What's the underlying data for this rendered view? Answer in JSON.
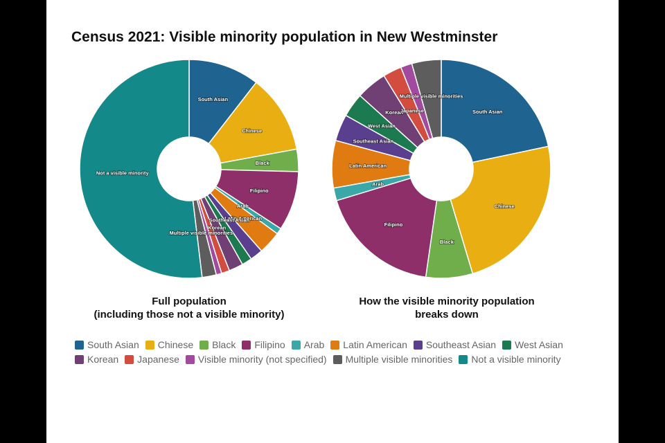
{
  "title": "Census 2021: Visible minority population in New Westminster",
  "colors": {
    "South Asian": "#1f6391",
    "Chinese": "#e8ae12",
    "Black": "#6fae4a",
    "Filipino": "#8e2f6a",
    "Arab": "#3aa7a8",
    "Latin American": "#e07b12",
    "Southeast Asian": "#5a3f8e",
    "West Asian": "#1b7a50",
    "Korean": "#703f73",
    "Japanese": "#d24c3f",
    "Visible minority (not specified)": "#a14a9e",
    "Multiple visible minorities": "#5d5d5d",
    "Not a visible minority": "#13898a"
  },
  "chart_data": [
    {
      "type": "pie",
      "caption": [
        "Full population",
        "(including those not a visible minority)"
      ],
      "categories": [
        "South Asian",
        "Chinese",
        "Black",
        "Filipino",
        "Arab",
        "Latin American",
        "Southeast Asian",
        "West Asian",
        "Korean",
        "Japanese",
        "Visible minority (not specified)",
        "Multiple visible minorities",
        "Not a visible minority"
      ],
      "values": [
        10.5,
        11.6,
        3.3,
        8.8,
        0.9,
        3.4,
        1.9,
        1.5,
        2.1,
        1.2,
        0.8,
        2.1,
        51.9
      ],
      "labels": [
        "South Asian",
        "Chinese",
        "Black",
        "Filipino",
        "Arab",
        "Latin American",
        "Southeast Asian",
        "",
        "Korean",
        "",
        "",
        "Multiple visible minorities",
        "Not a visible minority"
      ]
    },
    {
      "type": "pie",
      "caption": [
        "How the visible minority population",
        "breaks down"
      ],
      "categories": [
        "South Asian",
        "Chinese",
        "Black",
        "Filipino",
        "Arab",
        "Latin American",
        "Southeast Asian",
        "West Asian",
        "Korean",
        "Japanese",
        "Visible minority (not specified)",
        "Multiple visible minorities"
      ],
      "values": [
        22.0,
        24.0,
        7.0,
        18.3,
        1.9,
        7.1,
        4.0,
        3.6,
        4.6,
        2.8,
        1.7,
        4.4
      ],
      "labels": [
        "South Asian",
        "Chinese",
        "Black",
        "Filipino",
        "Arab",
        "Latin American",
        "Southeast Asian",
        "West Asian",
        "Korean",
        "Japanese",
        "",
        "Multiple visible minorities"
      ]
    }
  ],
  "legend": [
    [
      "South Asian",
      "Chinese",
      "Black",
      "Filipino",
      "Arab",
      "Latin American",
      "Southeast Asian",
      "West Asian"
    ],
    [
      "Korean",
      "Japanese",
      "Visible minority (not specified)",
      "Multiple visible minorities",
      "Not a visible minority"
    ]
  ]
}
